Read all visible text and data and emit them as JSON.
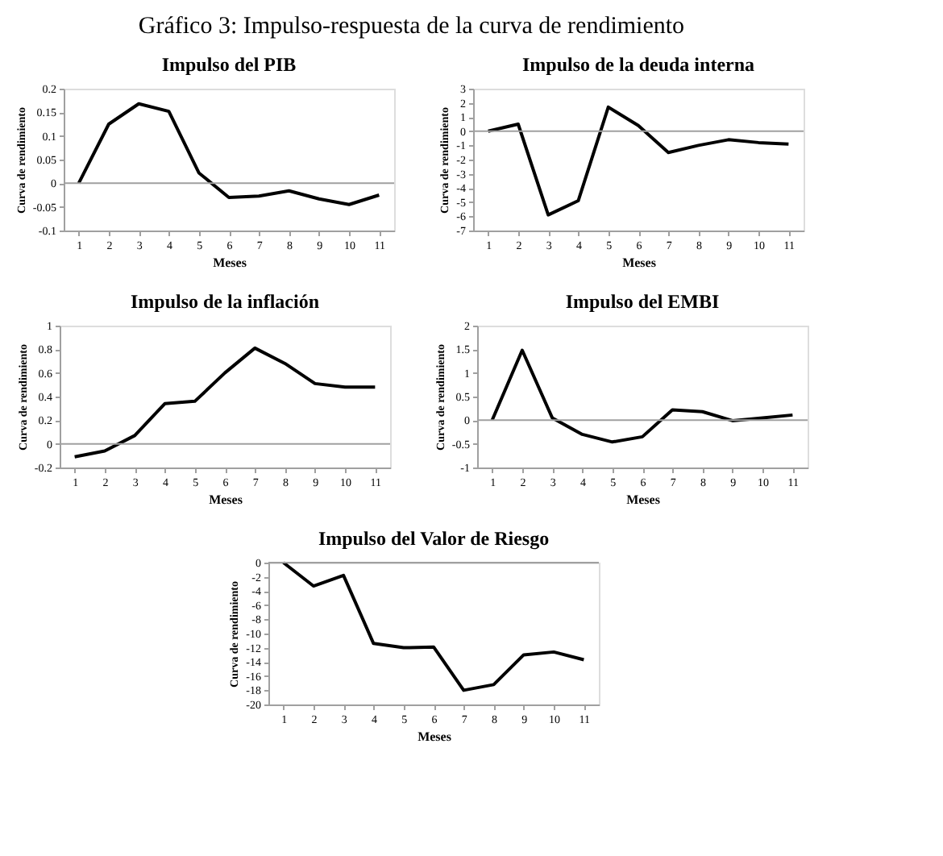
{
  "chart_data": [
    {
      "type": "line",
      "title": "Impulso del PIB",
      "annotations": [
        "Gráfico 3: Impulso-respuesta de la curva de rendimiento"
      ],
      "xlabel": "Meses",
      "ylabel": "Curva de rendimiento",
      "categories": [
        "1",
        "2",
        "3",
        "4",
        "5",
        "6",
        "7",
        "8",
        "9",
        "10",
        "11"
      ],
      "series": [
        {
          "color": "#000000",
          "values": [
            0,
            0.125,
            0.168,
            0.152,
            0.022,
            -0.03,
            -0.027,
            -0.016,
            -0.033,
            -0.045,
            -0.025
          ]
        }
      ],
      "ylim": [
        -0.1,
        0.2
      ],
      "yticks": [
        -0.1,
        -0.05,
        0,
        0.05,
        0.1,
        0.15,
        0.2
      ],
      "ref_lines": [
        {
          "axis": "y",
          "value": 0,
          "color": "#a0a0a0"
        }
      ],
      "grid": false,
      "marker": "none",
      "line_style": "solid"
    },
    {
      "type": "line",
      "title": "Impulso de la deuda interna",
      "xlabel": "Meses",
      "ylabel": "Curva de rendimiento",
      "categories": [
        "1",
        "2",
        "3",
        "4",
        "5",
        "6",
        "7",
        "8",
        "9",
        "10",
        "11"
      ],
      "series": [
        {
          "color": "#000000",
          "values": [
            0,
            0.5,
            -5.9,
            -4.9,
            1.7,
            0.4,
            -1.5,
            -1,
            -0.6,
            -0.8,
            -0.9
          ]
        }
      ],
      "ylim": [
        -7,
        3
      ],
      "yticks": [
        -7,
        -6,
        -5,
        -4,
        -3,
        -2,
        -1,
        0,
        1,
        2,
        3
      ],
      "ref_lines": [
        {
          "axis": "y",
          "value": 0,
          "color": "#a0a0a0"
        }
      ],
      "grid": false,
      "marker": "none",
      "line_style": "solid"
    },
    {
      "type": "line",
      "title": "Impulso de la inflación",
      "xlabel": "Meses",
      "ylabel": "Curva de rendimiento",
      "categories": [
        "1",
        "2",
        "3",
        "4",
        "5",
        "6",
        "7",
        "8",
        "9",
        "10",
        "11"
      ],
      "series": [
        {
          "color": "#000000",
          "values": [
            -0.11,
            -0.06,
            0.07,
            0.34,
            0.36,
            0.6,
            0.81,
            0.68,
            0.51,
            0.48,
            0.48
          ]
        }
      ],
      "ylim": [
        -0.2,
        1
      ],
      "yticks": [
        -0.2,
        0,
        0.2,
        0.4,
        0.6,
        0.8,
        1
      ],
      "ref_lines": [
        {
          "axis": "y",
          "value": 0,
          "color": "#a0a0a0"
        }
      ],
      "grid": false,
      "marker": "none",
      "line_style": "solid"
    },
    {
      "type": "line",
      "title": "Impulso del EMBI",
      "xlabel": "Meses",
      "ylabel": "Curva de rendimiento",
      "categories": [
        "1",
        "2",
        "3",
        "4",
        "5",
        "6",
        "7",
        "8",
        "9",
        "10",
        "11"
      ],
      "series": [
        {
          "color": "#000000",
          "values": [
            0,
            1.48,
            0.05,
            -0.3,
            -0.46,
            -0.35,
            0.22,
            0.18,
            -0.01,
            0.05,
            0.11
          ]
        }
      ],
      "ylim": [
        -1,
        2
      ],
      "yticks": [
        -1,
        -0.5,
        0,
        0.5,
        1,
        1.5,
        2
      ],
      "ref_lines": [
        {
          "axis": "y",
          "value": 0,
          "color": "#a0a0a0"
        }
      ],
      "grid": false,
      "marker": "none",
      "line_style": "solid"
    },
    {
      "type": "line",
      "title": "Impulso del Valor de Riesgo",
      "xlabel": "Meses",
      "ylabel": "Curva de rendimiento",
      "categories": [
        "1",
        "2",
        "3",
        "4",
        "5",
        "6",
        "7",
        "8",
        "9",
        "10",
        "11"
      ],
      "series": [
        {
          "color": "#000000",
          "values": [
            0,
            -3.3,
            -1.8,
            -11.4,
            -12,
            -11.9,
            -18,
            -17.2,
            -13,
            -12.6,
            -13.7
          ]
        }
      ],
      "ylim": [
        -20,
        0
      ],
      "yticks": [
        -20,
        -18,
        -16,
        -14,
        -12,
        -10,
        -8,
        -6,
        -4,
        -2,
        0
      ],
      "ref_lines": [
        {
          "axis": "y",
          "value": 0,
          "color": "#a0a0a0"
        }
      ],
      "grid": false,
      "marker": "none",
      "line_style": "solid"
    }
  ]
}
